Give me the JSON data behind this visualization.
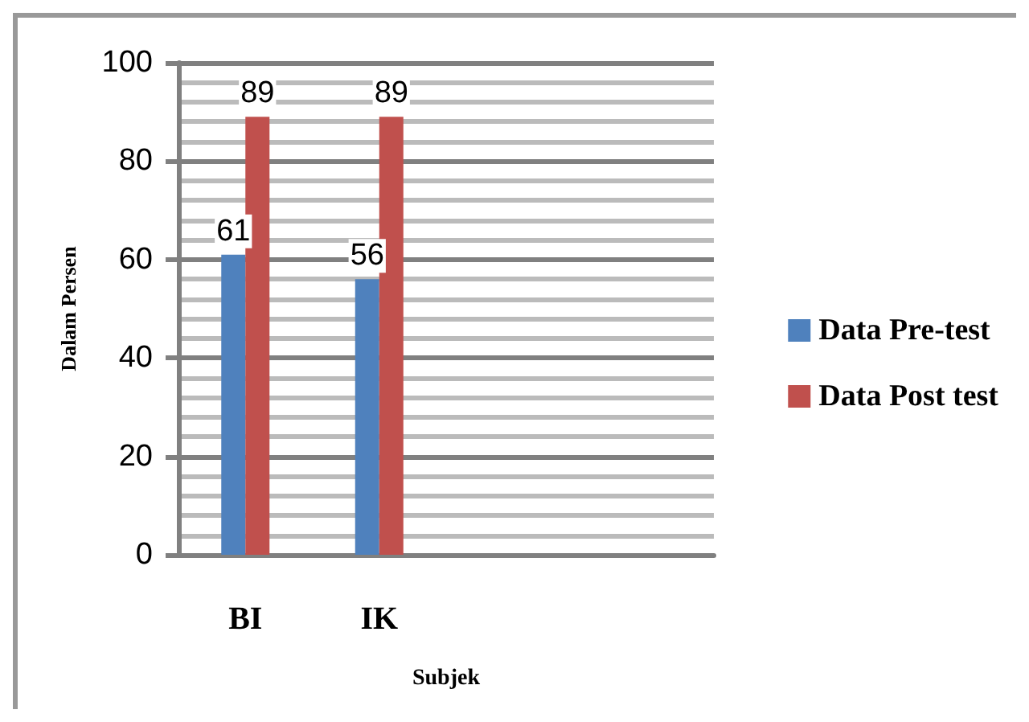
{
  "chart_data": {
    "type": "bar",
    "categories": [
      "BI",
      "IK",
      null,
      null
    ],
    "xlabel": "Subjek",
    "ylabel": "Dalam Persen",
    "series": [
      {
        "name": "Data Pre-test",
        "color": "#4f81bd",
        "values": [
          61,
          56,
          null,
          null
        ]
      },
      {
        "name": "Data Post test",
        "color": "#c0504d",
        "values": [
          89,
          89,
          null,
          null
        ]
      }
    ],
    "ylim": [
      0,
      100
    ],
    "yticks": [
      0,
      20,
      40,
      60,
      80,
      100
    ],
    "grid": "y",
    "legend": "right",
    "data_labels": true
  }
}
